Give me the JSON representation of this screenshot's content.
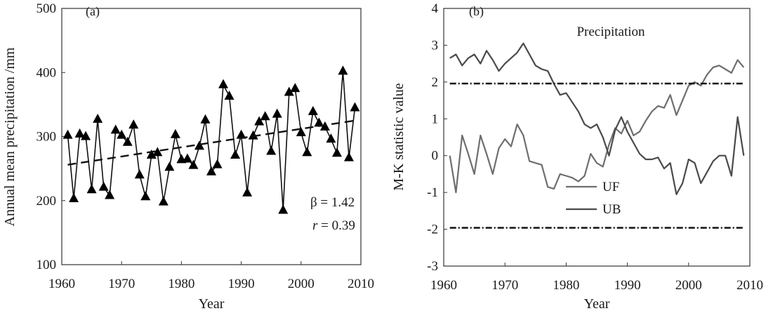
{
  "chart_data": [
    {
      "type": "line",
      "panel_label": "(a)",
      "xlabel": "Year",
      "ylabel": "Annual mean precipitation /mm",
      "xlim": [
        1960,
        2010
      ],
      "ylim": [
        100,
        500
      ],
      "xticks": [
        1960,
        1970,
        1980,
        1990,
        2000,
        2010
      ],
      "yticks": [
        100,
        200,
        300,
        400,
        500
      ],
      "series": [
        {
          "name": "Annual precipitation",
          "marker": "triangle",
          "color": "#111111",
          "x": [
            1961,
            1962,
            1963,
            1964,
            1965,
            1966,
            1967,
            1968,
            1969,
            1970,
            1971,
            1972,
            1973,
            1974,
            1975,
            1976,
            1977,
            1978,
            1979,
            1980,
            1981,
            1982,
            1983,
            1984,
            1985,
            1986,
            1987,
            1988,
            1989,
            1990,
            1991,
            1992,
            1993,
            1994,
            1995,
            1996,
            1997,
            1998,
            1999,
            2000,
            2001,
            2002,
            2003,
            2004,
            2005,
            2006,
            2007,
            2008,
            2009
          ],
          "values": [
            302,
            203,
            304,
            300,
            217,
            327,
            221,
            208,
            310,
            302,
            291,
            318,
            240,
            206,
            271,
            275,
            198,
            252,
            303,
            264,
            265,
            255,
            285,
            326,
            245,
            256,
            381,
            363,
            271,
            302,
            212,
            301,
            323,
            331,
            277,
            335,
            185,
            369,
            375,
            306,
            275,
            339,
            321,
            315,
            296,
            274,
            402,
            267,
            345
          ]
        },
        {
          "name": "Linear trend",
          "style": "dashed",
          "color": "#111111",
          "x": [
            1961,
            2009
          ],
          "values": [
            256,
            325
          ]
        }
      ],
      "annotations": [
        {
          "text": "β = 1.42"
        },
        {
          "text_prefix": "r",
          "text_suffix": " = 0.39"
        }
      ]
    },
    {
      "type": "line",
      "panel_label": "(b)",
      "title": "Precipitation",
      "xlabel": "Year",
      "ylabel": "M-K statistic value",
      "xlim": [
        1960,
        2010
      ],
      "ylim": [
        -3,
        4
      ],
      "xticks": [
        1960,
        1970,
        1980,
        1990,
        2000,
        2010
      ],
      "yticks": [
        -3,
        -2,
        -1,
        0,
        1,
        2,
        3,
        4
      ],
      "legend": [
        "UF",
        "UB"
      ],
      "series": [
        {
          "name": "UF",
          "color": "#6e6e6e",
          "x": [
            1961,
            1962,
            1963,
            1964,
            1965,
            1966,
            1967,
            1968,
            1969,
            1970,
            1971,
            1972,
            1973,
            1974,
            1975,
            1976,
            1977,
            1978,
            1979,
            1980,
            1981,
            1982,
            1983,
            1984,
            1985,
            1986,
            1987,
            1988,
            1989,
            1990,
            1991,
            1992,
            1993,
            1994,
            1995,
            1996,
            1997,
            1998,
            1999,
            2000,
            2001,
            2002,
            2003,
            2004,
            2005,
            2006,
            2007,
            2008,
            2009
          ],
          "values": [
            0,
            -1.0,
            0.55,
            0.05,
            -0.5,
            0.55,
            0.05,
            -0.5,
            0.2,
            0.45,
            0.25,
            0.85,
            0.55,
            -0.15,
            -0.2,
            -0.25,
            -0.85,
            -0.9,
            -0.5,
            -0.55,
            -0.6,
            -0.7,
            -0.55,
            0.05,
            -0.2,
            -0.3,
            0.3,
            0.75,
            0.6,
            0.95,
            0.55,
            0.65,
            0.95,
            1.2,
            1.35,
            1.3,
            1.65,
            1.1,
            1.5,
            1.9,
            2.0,
            1.9,
            2.2,
            2.4,
            2.45,
            2.35,
            2.25,
            2.6,
            2.4
          ]
        },
        {
          "name": "UB",
          "color": "#4a4a4a",
          "x": [
            1961,
            1962,
            1963,
            1964,
            1965,
            1966,
            1967,
            1968,
            1969,
            1970,
            1971,
            1972,
            1973,
            1974,
            1975,
            1976,
            1977,
            1978,
            1979,
            1980,
            1981,
            1982,
            1983,
            1984,
            1985,
            1986,
            1987,
            1988,
            1989,
            1990,
            1991,
            1992,
            1993,
            1994,
            1995,
            1996,
            1997,
            1998,
            1999,
            2000,
            2001,
            2002,
            2003,
            2004,
            2005,
            2006,
            2007,
            2008,
            2009
          ],
          "values": [
            2.65,
            2.75,
            2.45,
            2.65,
            2.75,
            2.5,
            2.85,
            2.6,
            2.3,
            2.5,
            2.65,
            2.8,
            3.05,
            2.75,
            2.45,
            2.35,
            2.3,
            1.95,
            1.65,
            1.7,
            1.45,
            1.2,
            0.85,
            0.75,
            0.85,
            0.5,
            0.0,
            0.7,
            1.05,
            0.65,
            0.35,
            0.05,
            -0.1,
            -0.1,
            -0.05,
            -0.35,
            -0.2,
            -1.05,
            -0.75,
            -0.1,
            -0.2,
            -0.75,
            -0.45,
            -0.15,
            0.0,
            0.0,
            -0.55,
            1.05,
            0.0
          ]
        },
        {
          "name": "Upper critical line",
          "style": "dashed",
          "color": "#111111",
          "x": [
            1961,
            2009
          ],
          "values": [
            1.96,
            1.96
          ]
        },
        {
          "name": "Lower critical line",
          "style": "dashed",
          "color": "#111111",
          "x": [
            1961,
            2009
          ],
          "values": [
            -1.96,
            -1.96
          ]
        }
      ]
    }
  ]
}
